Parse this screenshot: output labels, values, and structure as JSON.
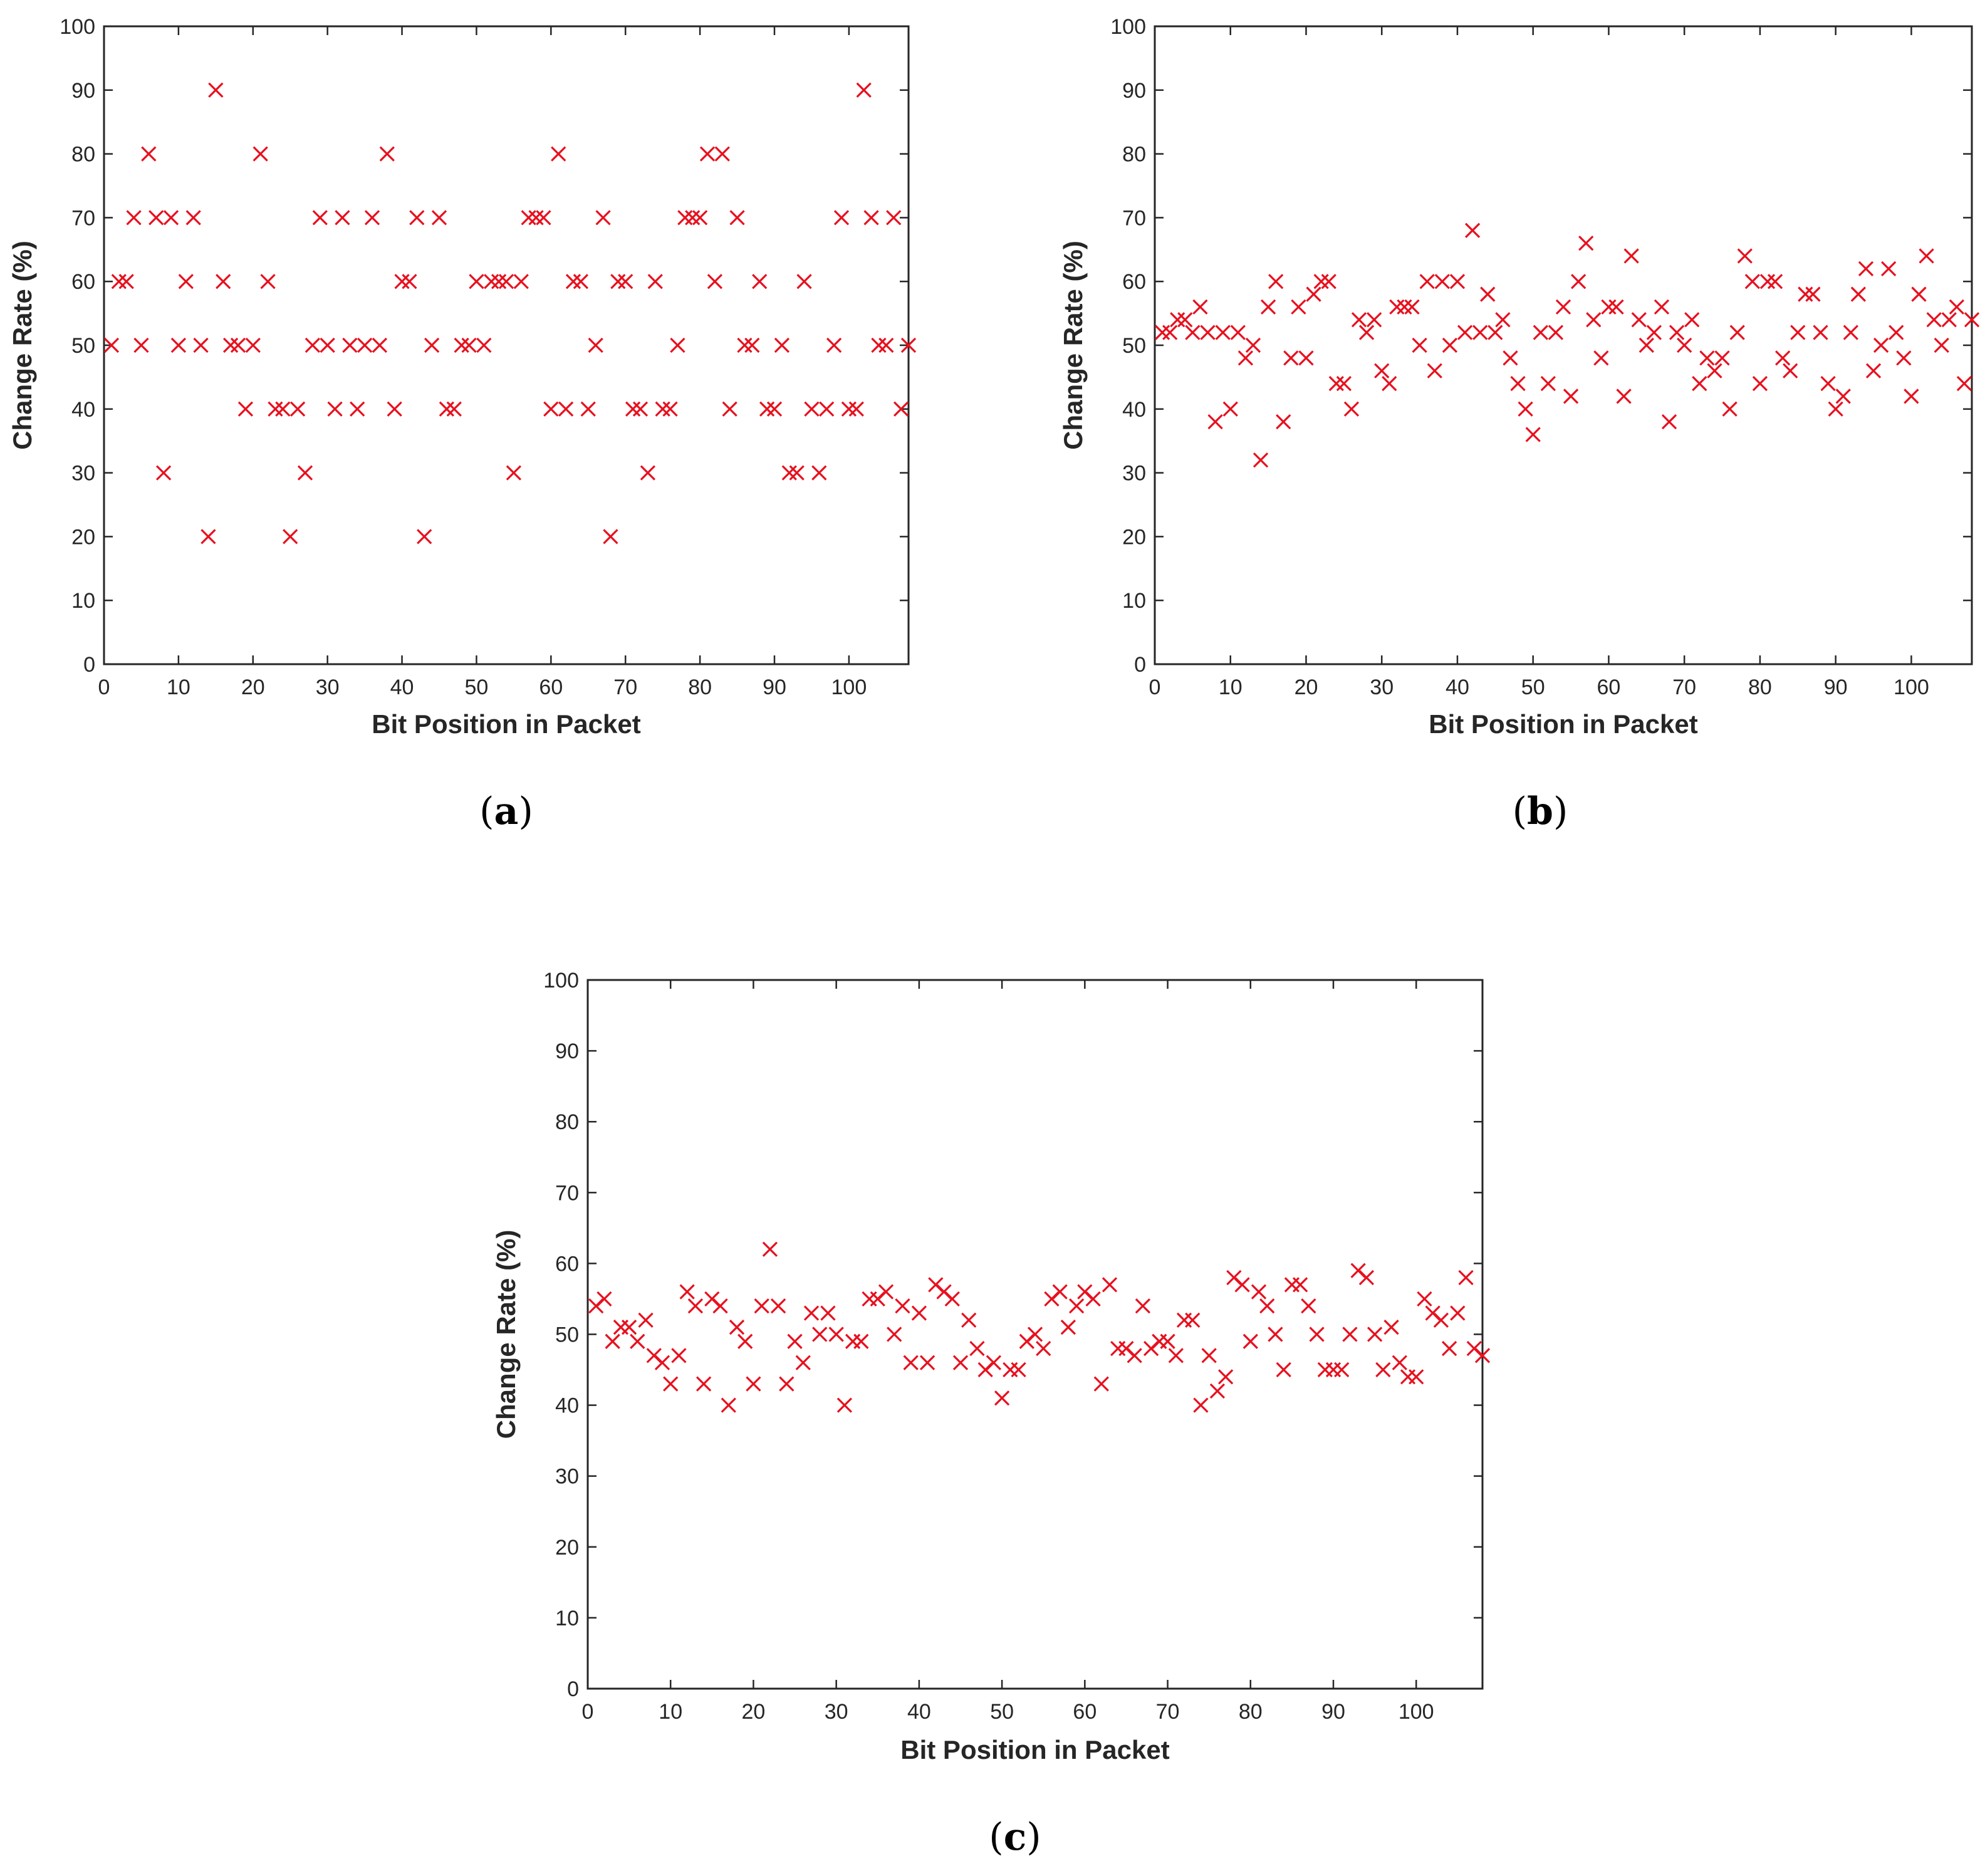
{
  "marker_color": "#e8101e",
  "marker_icon": "x-cross",
  "chart_data": [
    {
      "type": "scatter",
      "panel": "a",
      "caption_letter": "a",
      "caption": "(a)",
      "xlabel": "Bit Position in Packet",
      "ylabel": "Change Rate (%)",
      "xlim": [
        0,
        108
      ],
      "ylim": [
        0,
        100
      ],
      "xticks": [
        0,
        10,
        20,
        30,
        40,
        50,
        60,
        70,
        80,
        90,
        100
      ],
      "yticks": [
        0,
        10,
        20,
        30,
        40,
        50,
        60,
        70,
        80,
        90,
        100
      ],
      "x": [
        1,
        2,
        3,
        4,
        5,
        6,
        7,
        8,
        9,
        10,
        11,
        12,
        13,
        14,
        15,
        16,
        17,
        18,
        19,
        20,
        21,
        22,
        23,
        24,
        25,
        26,
        27,
        28,
        29,
        30,
        31,
        32,
        33,
        34,
        35,
        36,
        37,
        38,
        39,
        40,
        41,
        42,
        43,
        44,
        45,
        46,
        47,
        48,
        49,
        50,
        51,
        52,
        53,
        54,
        55,
        56,
        57,
        58,
        59,
        60,
        61,
        62,
        63,
        64,
        65,
        66,
        67,
        68,
        69,
        70,
        71,
        72,
        73,
        74,
        75,
        76,
        77,
        78,
        79,
        80,
        81,
        82,
        83,
        84,
        85,
        86,
        87,
        88,
        89,
        90,
        91,
        92,
        93,
        94,
        95,
        96,
        97,
        98,
        99,
        100,
        101,
        102,
        103,
        104,
        105,
        106,
        107,
        108
      ],
      "y": [
        50,
        60,
        60,
        70,
        50,
        80,
        70,
        30,
        70,
        50,
        60,
        70,
        50,
        20,
        90,
        60,
        50,
        50,
        40,
        50,
        80,
        60,
        40,
        40,
        20,
        40,
        30,
        50,
        70,
        50,
        40,
        70,
        50,
        40,
        50,
        70,
        50,
        80,
        40,
        60,
        60,
        70,
        20,
        50,
        70,
        40,
        40,
        50,
        50,
        60,
        50,
        60,
        60,
        60,
        30,
        60,
        70,
        70,
        70,
        40,
        80,
        40,
        60,
        60,
        40,
        50,
        70,
        20,
        60,
        60,
        40,
        40,
        30,
        60,
        40,
        40,
        50,
        70,
        70,
        70,
        80,
        60,
        80,
        40,
        70,
        50,
        50,
        60,
        40,
        40,
        50,
        30,
        30,
        60,
        40,
        30,
        40,
        50,
        70,
        40,
        40,
        90,
        70,
        50,
        50,
        70,
        40,
        50
      ]
    },
    {
      "type": "scatter",
      "panel": "b",
      "caption_letter": "b",
      "caption": "(b)",
      "xlabel": "Bit Position in Packet",
      "ylabel": "Change Rate (%)",
      "xlim": [
        0,
        108
      ],
      "ylim": [
        0,
        100
      ],
      "xticks": [
        0,
        10,
        20,
        30,
        40,
        50,
        60,
        70,
        80,
        90,
        100
      ],
      "yticks": [
        0,
        10,
        20,
        30,
        40,
        50,
        60,
        70,
        80,
        90,
        100
      ],
      "x": [
        1,
        2,
        3,
        4,
        5,
        6,
        7,
        8,
        9,
        10,
        11,
        12,
        13,
        14,
        15,
        16,
        17,
        18,
        19,
        20,
        21,
        22,
        23,
        24,
        25,
        26,
        27,
        28,
        29,
        30,
        31,
        32,
        33,
        34,
        35,
        36,
        37,
        38,
        39,
        40,
        41,
        42,
        43,
        44,
        45,
        46,
        47,
        48,
        49,
        50,
        51,
        52,
        53,
        54,
        55,
        56,
        57,
        58,
        59,
        60,
        61,
        62,
        63,
        64,
        65,
        66,
        67,
        68,
        69,
        70,
        71,
        72,
        73,
        74,
        75,
        76,
        77,
        78,
        79,
        80,
        81,
        82,
        83,
        84,
        85,
        86,
        87,
        88,
        89,
        90,
        91,
        92,
        93,
        94,
        95,
        96,
        97,
        98,
        99,
        100,
        101,
        102,
        103,
        104,
        105,
        106,
        107,
        108
      ],
      "y": [
        52,
        52,
        54,
        54,
        52,
        56,
        52,
        38,
        52,
        40,
        52,
        48,
        50,
        32,
        56,
        60,
        38,
        48,
        56,
        48,
        58,
        60,
        60,
        44,
        44,
        40,
        54,
        52,
        54,
        46,
        44,
        56,
        56,
        56,
        50,
        60,
        46,
        60,
        50,
        60,
        52,
        68,
        52,
        58,
        52,
        54,
        48,
        44,
        40,
        36,
        52,
        44,
        52,
        56,
        42,
        60,
        66,
        54,
        48,
        56,
        56,
        42,
        64,
        54,
        50,
        52,
        56,
        38,
        52,
        50,
        54,
        44,
        48,
        46,
        48,
        40,
        52,
        64,
        60,
        44,
        60,
        60,
        48,
        46,
        52,
        58,
        58,
        52,
        44,
        40,
        42,
        52,
        58,
        62,
        46,
        50,
        62,
        52,
        48,
        42,
        58,
        64,
        54,
        50,
        54,
        56,
        44,
        54
      ]
    },
    {
      "type": "scatter",
      "panel": "c",
      "caption_letter": "c",
      "caption": "(c)",
      "xlabel": "Bit Position in Packet",
      "ylabel": "Change Rate (%)",
      "xlim": [
        0,
        108
      ],
      "ylim": [
        0,
        100
      ],
      "xticks": [
        0,
        10,
        20,
        30,
        40,
        50,
        60,
        70,
        80,
        90,
        100
      ],
      "yticks": [
        0,
        10,
        20,
        30,
        40,
        50,
        60,
        70,
        80,
        90,
        100
      ],
      "x": [
        1,
        2,
        3,
        4,
        5,
        6,
        7,
        8,
        9,
        10,
        11,
        12,
        13,
        14,
        15,
        16,
        17,
        18,
        19,
        20,
        21,
        22,
        23,
        24,
        25,
        26,
        27,
        28,
        29,
        30,
        31,
        32,
        33,
        34,
        35,
        36,
        37,
        38,
        39,
        40,
        41,
        42,
        43,
        44,
        45,
        46,
        47,
        48,
        49,
        50,
        51,
        52,
        53,
        54,
        55,
        56,
        57,
        58,
        59,
        60,
        61,
        62,
        63,
        64,
        65,
        66,
        67,
        68,
        69,
        70,
        71,
        72,
        73,
        74,
        75,
        76,
        77,
        78,
        79,
        80,
        81,
        82,
        83,
        84,
        85,
        86,
        87,
        88,
        89,
        90,
        91,
        92,
        93,
        94,
        95,
        96,
        97,
        98,
        99,
        100,
        101,
        102,
        103,
        104,
        105,
        106,
        107,
        108
      ],
      "y": [
        54,
        55,
        49,
        51,
        51,
        49,
        52,
        47,
        46,
        43,
        47,
        56,
        54,
        43,
        55,
        54,
        40,
        51,
        49,
        43,
        54,
        62,
        54,
        43,
        49,
        46,
        53,
        50,
        53,
        50,
        40,
        49,
        49,
        55,
        55,
        56,
        50,
        54,
        46,
        53,
        46,
        57,
        56,
        55,
        46,
        52,
        48,
        45,
        46,
        41,
        45,
        45,
        49,
        50,
        48,
        55,
        56,
        51,
        54,
        56,
        55,
        43,
        57,
        48,
        48,
        47,
        54,
        48,
        49,
        49,
        47,
        52,
        52,
        40,
        47,
        42,
        44,
        58,
        57,
        49,
        56,
        54,
        50,
        45,
        57,
        57,
        54,
        50,
        45,
        45,
        45,
        50,
        59,
        58,
        50,
        45,
        51,
        46,
        44,
        44,
        55,
        53,
        52,
        48,
        53,
        58,
        48,
        47
      ]
    }
  ]
}
